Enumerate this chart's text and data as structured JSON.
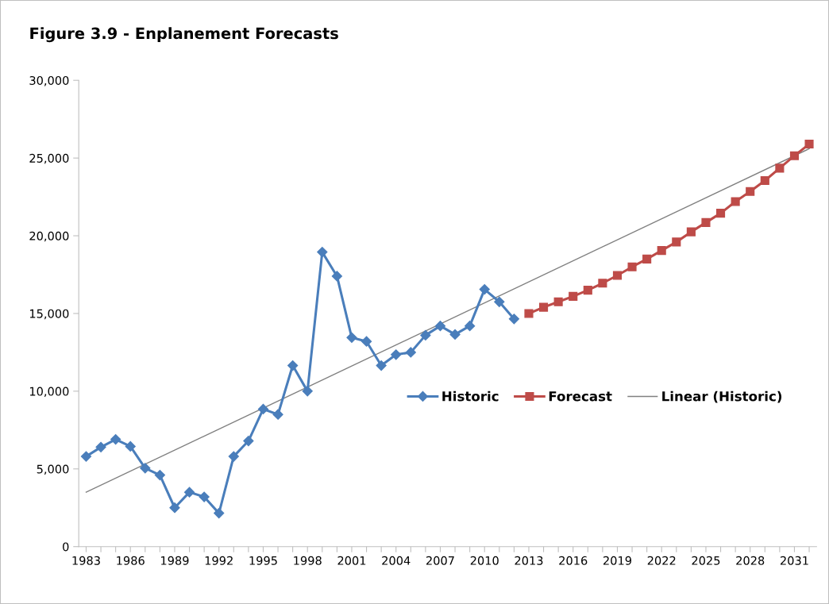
{
  "chart_data": {
    "type": "line",
    "title": "Figure 3.9 - Enplanement Forecasts",
    "xlim": [
      1982.5,
      2032.5
    ],
    "ylim": [
      0,
      30000
    ],
    "xticks": [
      1983,
      {
        "value": 1984,
        "label": null
      },
      {
        "value": 1985,
        "label": null
      },
      1986,
      {
        "value": 1987,
        "label": null
      },
      {
        "value": 1988,
        "label": null
      },
      1989,
      {
        "value": 1990,
        "label": null
      },
      {
        "value": 1991,
        "label": null
      },
      1992,
      {
        "value": 1993,
        "label": null
      },
      {
        "value": 1994,
        "label": null
      },
      1995,
      {
        "value": 1996,
        "label": null
      },
      {
        "value": 1997,
        "label": null
      },
      1998,
      {
        "value": 1999,
        "label": null
      },
      {
        "value": 2000,
        "label": null
      },
      2001,
      {
        "value": 2002,
        "label": null
      },
      {
        "value": 2003,
        "label": null
      },
      2004,
      {
        "value": 2005,
        "label": null
      },
      {
        "value": 2006,
        "label": null
      },
      2007,
      {
        "value": 2008,
        "label": null
      },
      {
        "value": 2009,
        "label": null
      },
      2010,
      {
        "value": 2011,
        "label": null
      },
      {
        "value": 2012,
        "label": null
      },
      2013,
      {
        "value": 2014,
        "label": null
      },
      {
        "value": 2015,
        "label": null
      },
      2016,
      {
        "value": 2017,
        "label": null
      },
      {
        "value": 2018,
        "label": null
      },
      2019,
      {
        "value": 2020,
        "label": null
      },
      {
        "value": 2021,
        "label": null
      },
      2022,
      {
        "value": 2023,
        "label": null
      },
      {
        "value": 2024,
        "label": null
      },
      2025,
      {
        "value": 2026,
        "label": null
      },
      {
        "value": 2027,
        "label": null
      },
      2028,
      {
        "value": 2029,
        "label": null
      },
      {
        "value": 2030,
        "label": null
      },
      2031,
      {
        "value": 2032,
        "label": null
      }
    ],
    "yticks": [
      0,
      {
        "value": 5000,
        "label": "5,000"
      },
      {
        "value": 10000,
        "label": "10,000"
      },
      {
        "value": 15000,
        "label": "15,000"
      },
      {
        "value": 20000,
        "label": "20,000"
      },
      {
        "value": 25000,
        "label": "25,000"
      },
      {
        "value": 30000,
        "label": "30,000"
      }
    ],
    "grid": false,
    "legend": "right",
    "series": [
      {
        "name": "Historic",
        "color": "#4a7ebb",
        "marker": "diamond",
        "x": [
          1983,
          1984,
          1985,
          1986,
          1987,
          1988,
          1989,
          1990,
          1991,
          1992,
          1993,
          1994,
          1995,
          1996,
          1997,
          1998,
          1999,
          2000,
          2001,
          2002,
          2003,
          2004,
          2005,
          2006,
          2007,
          2008,
          2009,
          2010,
          2011,
          2012
        ],
        "values": [
          5800,
          6400,
          6900,
          6450,
          5050,
          4600,
          2500,
          3500,
          3200,
          2150,
          5800,
          6800,
          8850,
          8500,
          11650,
          10000,
          18950,
          17400,
          13450,
          13200,
          11650,
          12350,
          12500,
          13600,
          14200,
          13650,
          14200,
          16550,
          15750,
          14650
        ]
      },
      {
        "name": "Forecast",
        "color": "#be4b48",
        "marker": "square",
        "x": [
          2013,
          2014,
          2015,
          2016,
          2017,
          2018,
          2019,
          2020,
          2021,
          2022,
          2023,
          2024,
          2025,
          2026,
          2027,
          2028,
          2029,
          2030,
          2031,
          2032
        ],
        "values": [
          15000,
          15400,
          15750,
          16100,
          16500,
          16950,
          17450,
          18000,
          18500,
          19050,
          19600,
          20250,
          20850,
          21450,
          22200,
          22850,
          23550,
          24350,
          25150,
          25900
        ]
      },
      {
        "name": "Linear (Historic)",
        "color": "#808080",
        "marker": "none",
        "x": [
          1983,
          2032
        ],
        "values": [
          3500,
          25600
        ]
      }
    ]
  }
}
